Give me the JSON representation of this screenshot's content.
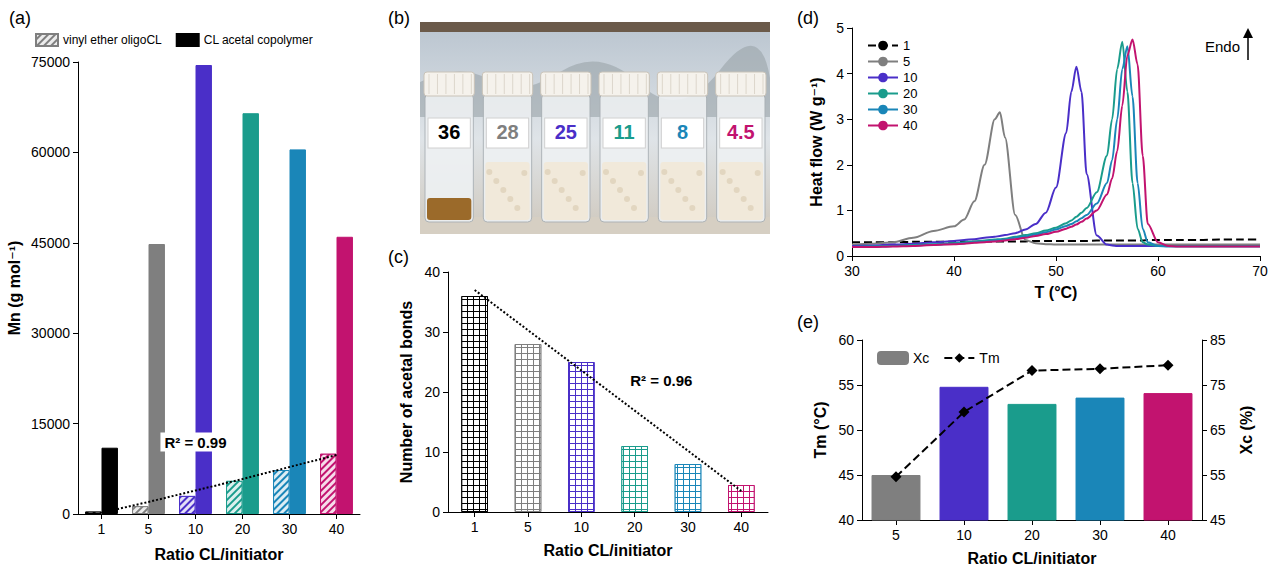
{
  "chart_data": [
    {
      "type": "bar",
      "title": "(a)",
      "categories": [
        "1",
        "5",
        "10",
        "20",
        "30",
        "40"
      ],
      "xlabel": "Ratio CL/initiator",
      "ylabel": "Mn (g mol⁻¹)",
      "ylim": [
        0,
        75000
      ],
      "yticks": [
        0,
        15000,
        30000,
        45000,
        60000,
        75000
      ],
      "grid": false,
      "legend": "top",
      "annotations": [
        "R² = 0.99"
      ],
      "series": [
        {
          "name": "vinyl ether oligoCL",
          "marker": "hatch",
          "color": "#7f7f7f",
          "colors": [
            "#000000",
            "#7f7f7f",
            "#4a2fc8",
            "#1a9c8c",
            "#1a86b8",
            "#c2136f"
          ],
          "values": [
            400,
            1300,
            3000,
            5500,
            7300,
            10000
          ]
        },
        {
          "name": "CL acetal copolymer",
          "marker": "solid",
          "color": "#000000",
          "colors": [
            "#000000",
            "#7f7f7f",
            "#4a2fc8",
            "#1a9c8c",
            "#1a86b8",
            "#c2136f"
          ],
          "values": [
            11000,
            44800,
            74500,
            66500,
            60500,
            46000
          ]
        },
        {
          "type": "line",
          "line_style": "dotted",
          "color": "#000000",
          "values": [
            200,
            2000,
            3900,
            5800,
            7800,
            9800
          ]
        }
      ]
    },
    {
      "type": "image",
      "title": "(b)",
      "values": [
        36,
        28,
        25,
        11,
        8,
        4.5
      ],
      "colors": [
        "#000000",
        "#7f7f7f",
        "#4a2fc8",
        "#1a9c8c",
        "#1a86b8",
        "#c2136f"
      ]
    },
    {
      "type": "bar",
      "title": "(c)",
      "categories": [
        "1",
        "5",
        "10",
        "20",
        "30",
        "40"
      ],
      "xlabel": "Ratio CL/initiator",
      "ylabel": "Number of acetal bonds",
      "ylim": [
        0,
        40
      ],
      "yticks": [
        0,
        10,
        20,
        30,
        40
      ],
      "grid": false,
      "annotations": [
        "R² = 0.96"
      ],
      "series": [
        {
          "marker": "crosshatch",
          "colors": [
            "#000000",
            "#7f7f7f",
            "#4a2fc8",
            "#1a9c8c",
            "#1a86b8",
            "#c2136f"
          ],
          "values": [
            36,
            28,
            25,
            11,
            8,
            4.5
          ]
        },
        {
          "type": "line",
          "line_style": "dotted",
          "color": "#000000",
          "values": [
            37,
            30.3,
            23.6,
            16.9,
            10.2,
            3.5
          ]
        }
      ]
    },
    {
      "type": "line",
      "title": "(d)",
      "xlabel": "T (°C)",
      "ylabel": "Heat flow (W g⁻¹)",
      "xlim": [
        30,
        70
      ],
      "xticks": [
        30,
        40,
        50,
        60,
        70
      ],
      "ylim": [
        0,
        5
      ],
      "yticks": [
        0,
        1,
        2,
        3,
        4,
        5
      ],
      "grid": false,
      "legend": "top-left",
      "annotations": [
        "Endo"
      ],
      "x": [
        30,
        32,
        34,
        36,
        38,
        40,
        41,
        42,
        43,
        44,
        44.5,
        45,
        46,
        47,
        48,
        49,
        50,
        51,
        51.5,
        52,
        52.5,
        53,
        54,
        55,
        55.5,
        56,
        56.5,
        57,
        57.5,
        58,
        58.5,
        59,
        60,
        61,
        62,
        64,
        66,
        68,
        70
      ],
      "series": [
        {
          "name": "1",
          "color": "#000000",
          "line_style": "dashed",
          "values": [
            0.3,
            0.3,
            0.3,
            0.31,
            0.31,
            0.31,
            0.31,
            0.31,
            0.32,
            0.32,
            0.32,
            0.32,
            0.32,
            0.32,
            0.33,
            0.33,
            0.33,
            0.33,
            0.33,
            0.33,
            0.33,
            0.33,
            0.34,
            0.34,
            0.34,
            0.34,
            0.34,
            0.34,
            0.34,
            0.34,
            0.34,
            0.35,
            0.35,
            0.35,
            0.35,
            0.35,
            0.36,
            0.36,
            0.36
          ]
        },
        {
          "name": "5",
          "color": "#7f7f7f",
          "line_style": "solid",
          "values": [
            0.25,
            0.27,
            0.3,
            0.4,
            0.55,
            0.65,
            0.8,
            1.2,
            2.0,
            3.0,
            3.15,
            2.6,
            0.9,
            0.35,
            0.28,
            0.26,
            0.25,
            0.25,
            0.25,
            0.25,
            0.25,
            0.25,
            0.25,
            0.25,
            0.25,
            0.25,
            0.25,
            0.25,
            0.25,
            0.25,
            0.25,
            0.25,
            0.25,
            0.25,
            0.25,
            0.25,
            0.25,
            0.25,
            0.25
          ]
        },
        {
          "name": "10",
          "color": "#4a2fc8",
          "line_style": "solid",
          "values": [
            0.22,
            0.23,
            0.25,
            0.27,
            0.3,
            0.33,
            0.35,
            0.37,
            0.4,
            0.42,
            0.44,
            0.46,
            0.5,
            0.58,
            0.7,
            0.95,
            1.5,
            2.7,
            3.6,
            4.15,
            3.6,
            1.8,
            0.45,
            0.25,
            0.23,
            0.22,
            0.22,
            0.22,
            0.22,
            0.22,
            0.22,
            0.22,
            0.22,
            0.22,
            0.22,
            0.22,
            0.22,
            0.22,
            0.22
          ]
        },
        {
          "name": "20",
          "color": "#1a9c8c",
          "line_style": "solid",
          "values": [
            0.2,
            0.21,
            0.22,
            0.24,
            0.26,
            0.28,
            0.3,
            0.32,
            0.34,
            0.36,
            0.37,
            0.38,
            0.42,
            0.46,
            0.5,
            0.56,
            0.62,
            0.72,
            0.78,
            0.86,
            0.95,
            1.05,
            1.4,
            2.2,
            3.0,
            4.1,
            4.7,
            3.6,
            1.6,
            0.6,
            0.3,
            0.25,
            0.22,
            0.22,
            0.22,
            0.22,
            0.22,
            0.22,
            0.22
          ]
        },
        {
          "name": "30",
          "color": "#1a86b8",
          "line_style": "solid",
          "values": [
            0.2,
            0.21,
            0.22,
            0.23,
            0.25,
            0.27,
            0.28,
            0.3,
            0.32,
            0.34,
            0.35,
            0.36,
            0.4,
            0.43,
            0.47,
            0.52,
            0.58,
            0.66,
            0.7,
            0.76,
            0.83,
            0.9,
            1.15,
            1.6,
            2.1,
            3.0,
            4.1,
            4.6,
            3.5,
            1.6,
            0.6,
            0.3,
            0.22,
            0.21,
            0.21,
            0.21,
            0.21,
            0.21,
            0.21
          ]
        },
        {
          "name": "40",
          "color": "#c2136f",
          "line_style": "solid",
          "values": [
            0.2,
            0.2,
            0.21,
            0.22,
            0.24,
            0.26,
            0.27,
            0.29,
            0.3,
            0.32,
            0.33,
            0.34,
            0.37,
            0.4,
            0.44,
            0.48,
            0.53,
            0.6,
            0.64,
            0.69,
            0.75,
            0.82,
            1.0,
            1.35,
            1.7,
            2.3,
            3.3,
            4.4,
            4.75,
            4.2,
            2.2,
            0.7,
            0.3,
            0.22,
            0.21,
            0.21,
            0.21,
            0.21,
            0.21
          ]
        }
      ]
    },
    {
      "type": "bar",
      "title": "(e)",
      "categories": [
        "5",
        "10",
        "20",
        "30",
        "40"
      ],
      "xlabel": "Ratio CL/initiator",
      "ylabel": "Tm (°C)",
      "y2label": "Xc (%)",
      "ylim": [
        40,
        60
      ],
      "yticks": [
        40,
        45,
        50,
        55,
        60
      ],
      "y2lim": [
        45,
        85
      ],
      "y2ticks": [
        45,
        55,
        65,
        75,
        85
      ],
      "grid": false,
      "legend": "top-left",
      "series": [
        {
          "name": "Xc",
          "type": "bar",
          "axis": "y2",
          "color": "#7f7f7f",
          "colors": [
            "#7f7f7f",
            "#4a2fc8",
            "#1a9c8c",
            "#1a86b8",
            "#c2136f"
          ],
          "values": [
            55,
            74.6,
            70.8,
            72.2,
            73.2
          ]
        },
        {
          "name": "Tm",
          "type": "line",
          "line_style": "dashed",
          "marker": "diamond",
          "color": "#000000",
          "values": [
            44.8,
            52,
            56.6,
            56.8,
            57.2
          ]
        }
      ]
    }
  ]
}
